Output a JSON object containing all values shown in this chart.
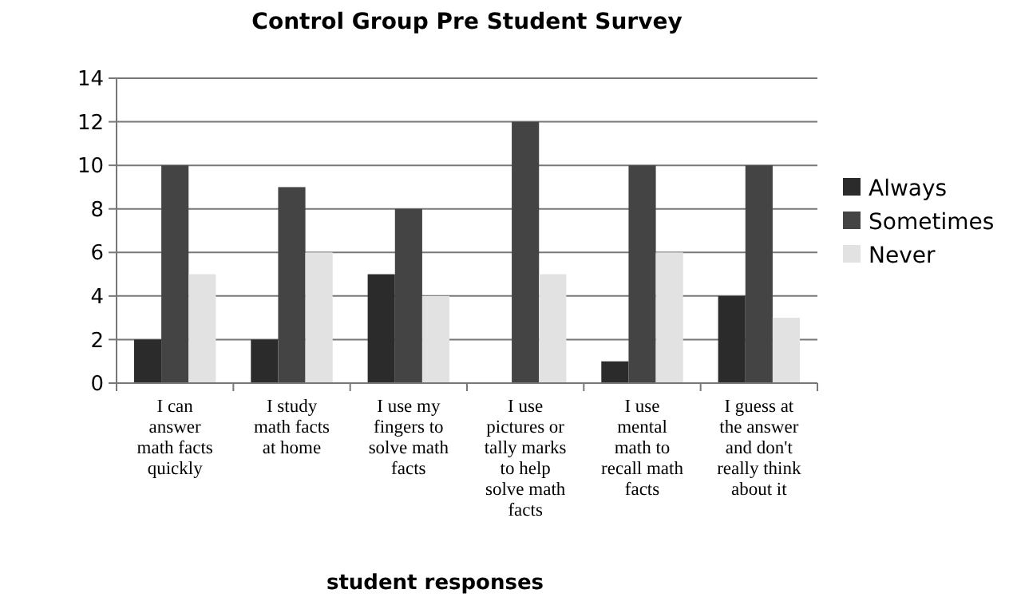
{
  "chart_data": {
    "type": "bar",
    "title": "Control Group Pre Student Survey",
    "xlabel": "student responses",
    "categories": [
      "I can\nanswer\nmath facts\nquickly",
      "I study\nmath facts\nat home",
      "I use my\nfingers to\nsolve math\nfacts",
      "I use\npictures or\ntally marks\nto help\nsolve math\nfacts",
      "I use\nmental\nmath to\nrecall math\nfacts",
      "I guess at\nthe answer\nand don't\nreally think\nabout it"
    ],
    "series": [
      {
        "name": "Always",
        "color": "#2b2b2b",
        "values": [
          2,
          2,
          5,
          0,
          1,
          4
        ]
      },
      {
        "name": "Sometimes",
        "color": "#444444",
        "values": [
          10,
          9,
          8,
          12,
          10,
          10
        ]
      },
      {
        "name": "Never",
        "color": "#e2e2e2",
        "values": [
          5,
          6,
          4,
          5,
          6,
          3
        ]
      }
    ],
    "ylim": [
      0,
      14
    ],
    "yticks": [
      0,
      2,
      4,
      6,
      8,
      10,
      12,
      14
    ],
    "grid": "y",
    "legend": "right"
  }
}
